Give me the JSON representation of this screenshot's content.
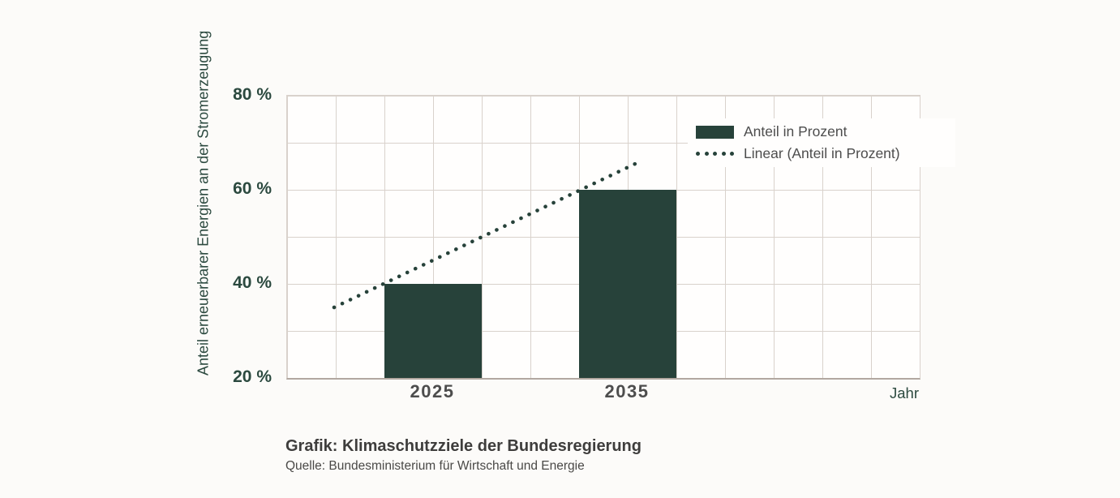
{
  "colors": {
    "accent_green": "#27423a",
    "text_green": "#2b493f",
    "text_gray": "#4d4d4d",
    "grid_line": "#d9d2cc",
    "axis_line": "#b2a8a1",
    "page_bg": "#fcfbf9",
    "plot_bg": "#fffefd"
  },
  "chart_data": {
    "type": "bar",
    "categories": [
      "2025",
      "2035"
    ],
    "series": [
      {
        "name": "Anteil in Prozent",
        "values": [
          40,
          60
        ],
        "color": "#27423a"
      }
    ],
    "trendline": {
      "name": "Linear (Anteil in Prozent)",
      "style": "dotted",
      "values": [
        35,
        66
      ],
      "color": "#27423a"
    },
    "xlabel": "Jahr",
    "ylabel": "Anteil erneuerbarer Energien an der Stromerzeugung",
    "ylim": [
      20,
      80
    ],
    "ytick_step": 10,
    "yticks": [
      {
        "label": "80 %",
        "value": 80
      },
      {
        "label": "60 %",
        "value": 60
      },
      {
        "label": "40 %",
        "value": 40
      },
      {
        "label": "20 %",
        "value": 20
      }
    ],
    "grid": true,
    "legend_position": "top-right"
  },
  "legend": {
    "items": [
      {
        "label": "Anteil in Prozent",
        "swatch": "bar"
      },
      {
        "label": "Linear (Anteil in Prozent)",
        "swatch": "dotted"
      }
    ]
  },
  "caption": {
    "title": "Grafik: Klimaschutzziele der Bundesregierung",
    "source": "Quelle: Bundesministerium für Wirtschaft und Energie"
  }
}
